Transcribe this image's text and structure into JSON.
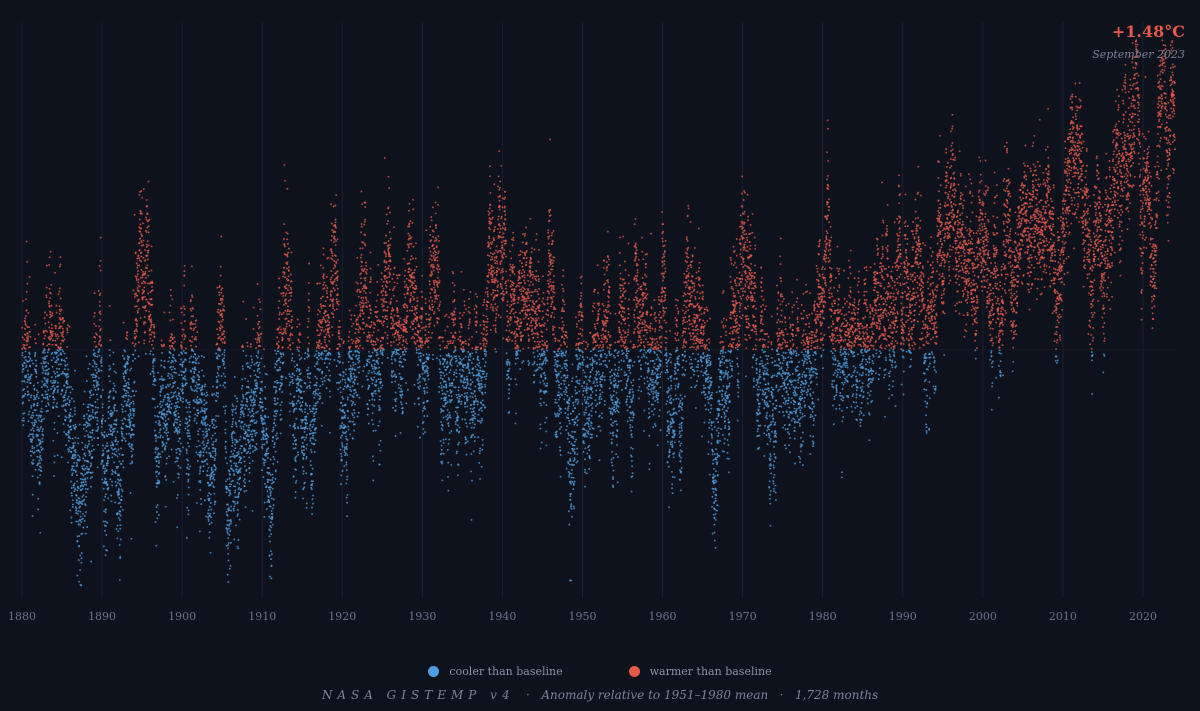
{
  "chart_data": {
    "type": "scatter",
    "title": "",
    "xlabel": "",
    "ylabel": "",
    "x_start": 1880,
    "x_end": 2024,
    "xlim": [
      1880,
      2024
    ],
    "ylim": [
      -1.4,
      1.8
    ],
    "baseline": 0,
    "x_ticks": [
      "1880",
      "1890",
      "1900",
      "1910",
      "1920",
      "1930",
      "1940",
      "1950",
      "1960",
      "1970",
      "1980",
      "1990",
      "2000",
      "2010",
      "2020"
    ],
    "grid": true,
    "legend_position": "bottom-center",
    "trend_anchors": [
      [
        1880,
        -0.18
      ],
      [
        1885,
        -0.2
      ],
      [
        1890,
        -0.3
      ],
      [
        1895,
        -0.22
      ],
      [
        1900,
        -0.12
      ],
      [
        1905,
        -0.3
      ],
      [
        1910,
        -0.43
      ],
      [
        1915,
        -0.25
      ],
      [
        1920,
        -0.25
      ],
      [
        1925,
        -0.2
      ],
      [
        1930,
        -0.13
      ],
      [
        1935,
        -0.14
      ],
      [
        1940,
        0.05
      ],
      [
        1945,
        0.05
      ],
      [
        1950,
        -0.15
      ],
      [
        1955,
        -0.15
      ],
      [
        1960,
        -0.02
      ],
      [
        1965,
        -0.1
      ],
      [
        1970,
        0.02
      ],
      [
        1975,
        -0.02
      ],
      [
        1980,
        0.22
      ],
      [
        1985,
        0.15
      ],
      [
        1990,
        0.38
      ],
      [
        1995,
        0.45
      ],
      [
        2000,
        0.5
      ],
      [
        2005,
        0.68
      ],
      [
        2010,
        0.75
      ],
      [
        2015,
        0.9
      ],
      [
        2020,
        1.05
      ],
      [
        2024,
        1.22
      ]
    ],
    "highlight": {
      "value_label": "+1.48°C",
      "date_label": "September 2023",
      "x": 2023.7,
      "y": 1.48
    },
    "series": [
      {
        "name": "cooler than baseline",
        "color": "#4f9de0"
      },
      {
        "name": "warmer than baseline",
        "color": "#e8584a"
      }
    ]
  },
  "caption": {
    "source": "NASA GISTEMP v4",
    "sep": "·",
    "note": "Anomaly relative to 1951–1980 mean",
    "count": "1,728 months"
  }
}
